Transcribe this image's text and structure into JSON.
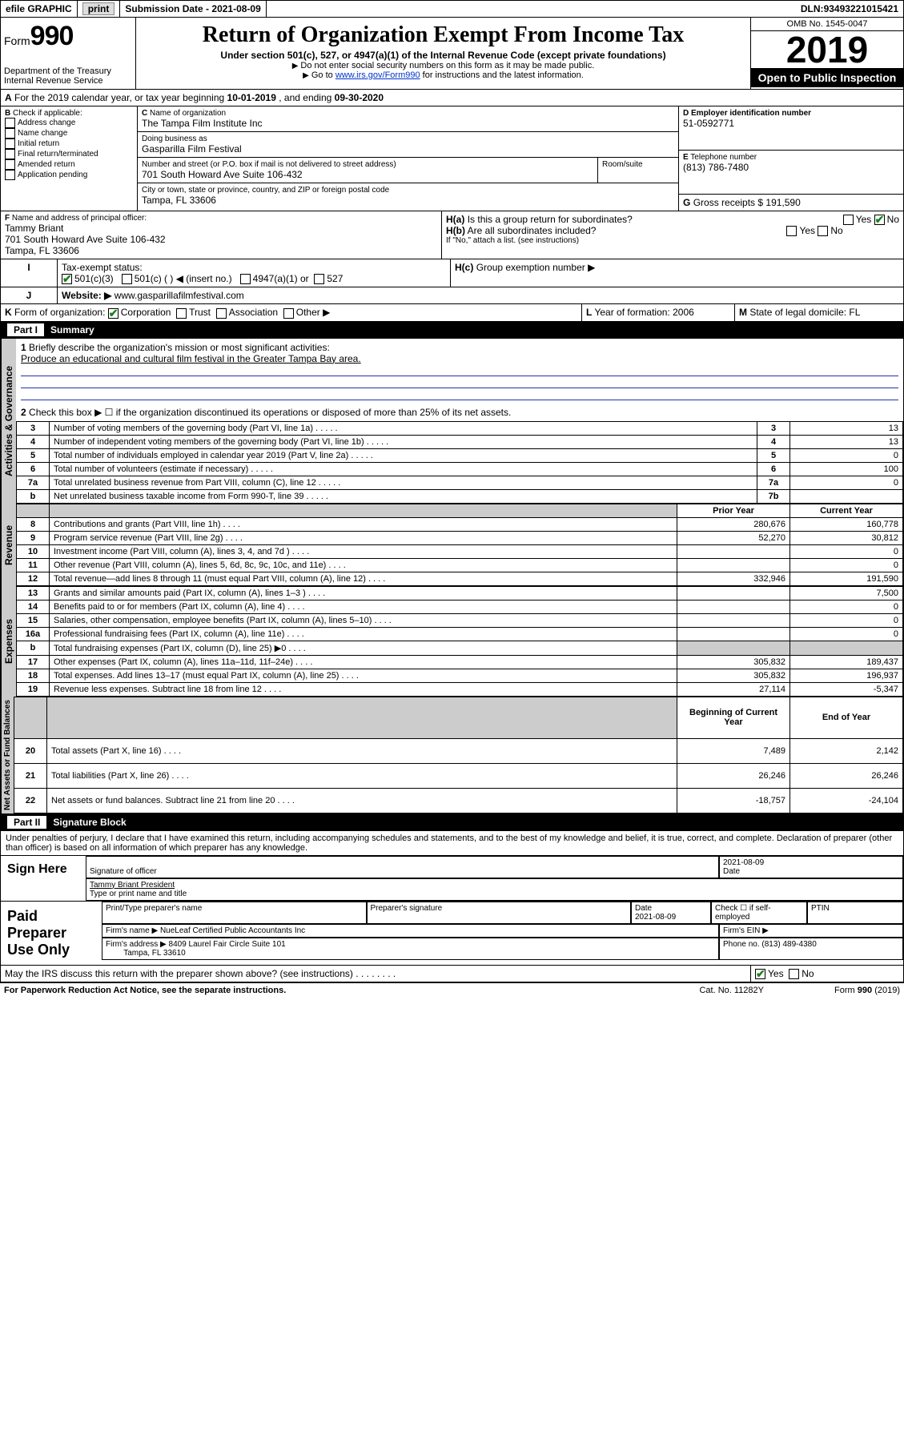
{
  "topbar": {
    "efile": "efile GRAPHIC",
    "print": "print",
    "sub_label": "Submission Date - ",
    "sub_date": "2021-08-09",
    "dln_label": "DLN: ",
    "dln": "93493221015421"
  },
  "header": {
    "form_prefix": "Form",
    "form_no": "990",
    "dept1": "Department of the Treasury",
    "dept2": "Internal Revenue Service",
    "title": "Return of Organization Exempt From Income Tax",
    "subtitle": "Under section 501(c), 527, or 4947(a)(1) of the Internal Revenue Code (except private foundations)",
    "note1": "Do not enter social security numbers on this form as it may be made public.",
    "note2_pre": "Go to ",
    "note2_link": "www.irs.gov/Form990",
    "note2_post": " for instructions and the latest information.",
    "omb": "OMB No. 1545-0047",
    "year": "2019",
    "open": "Open to Public Inspection"
  },
  "periodA": {
    "text_pre": "For the 2019 calendar year, or tax year beginning ",
    "begin": "10-01-2019",
    "mid": " , and ending ",
    "end": "09-30-2020"
  },
  "boxB": {
    "label": "Check if applicable:",
    "opts": [
      "Address change",
      "Name change",
      "Initial return",
      "Final return/terminated",
      "Amended return",
      "Application pending"
    ]
  },
  "boxC": {
    "name_label": "Name of organization",
    "name": "The Tampa Film Institute Inc",
    "dba_label": "Doing business as",
    "dba": "Gasparilla Film Festival",
    "street_label": "Number and street (or P.O. box if mail is not delivered to street address)",
    "room_label": "Room/suite",
    "street": "701 South Howard Ave Suite 106-432",
    "city_label": "City or town, state or province, country, and ZIP or foreign postal code",
    "city": "Tampa, FL  33606"
  },
  "boxD": {
    "label": "Employer identification number",
    "val": "51-0592771"
  },
  "boxE": {
    "label": "Telephone number",
    "val": "(813) 786-7480"
  },
  "boxG": {
    "label": "Gross receipts $ ",
    "val": "191,590"
  },
  "boxF": {
    "label": "Name and address of principal officer:",
    "name": "Tammy Briant",
    "street": "701 South Howard Ave Suite 106-432",
    "city": "Tampa, FL  33606"
  },
  "boxH": {
    "a": "Is this a group return for subordinates?",
    "b": "Are all subordinates included?",
    "note": "If \"No,\" attach a list. (see instructions)",
    "c": "Group exemption number ▶",
    "yes": "Yes",
    "no": "No"
  },
  "boxI": {
    "label": "Tax-exempt status:",
    "opts": [
      "501(c)(3)",
      "501(c) (   ) ◀ (insert no.)",
      "4947(a)(1) or",
      "527"
    ]
  },
  "boxJ": {
    "label": "Website: ▶",
    "val": "www.gasparillafilmfestival.com"
  },
  "boxK": {
    "label": "Form of organization:",
    "opts": [
      "Corporation",
      "Trust",
      "Association",
      "Other ▶"
    ]
  },
  "boxL": {
    "label": "Year of formation: ",
    "val": "2006"
  },
  "boxM": {
    "label": "State of legal domicile: ",
    "val": "FL"
  },
  "part1": {
    "no": "Part I",
    "title": "Summary"
  },
  "summary": {
    "l1_label": "Briefly describe the organization's mission or most significant activities:",
    "l1_text": "Produce an educational and cultural film festival in the Greater Tampa Bay area.",
    "l2": "Check this box ▶ ☐  if the organization discontinued its operations or disposed of more than 25% of its net assets.",
    "rows1": [
      {
        "n": "3",
        "t": "Number of voting members of the governing body (Part VI, line 1a)",
        "r": "3",
        "v": "13"
      },
      {
        "n": "4",
        "t": "Number of independent voting members of the governing body (Part VI, line 1b)",
        "r": "4",
        "v": "13"
      },
      {
        "n": "5",
        "t": "Total number of individuals employed in calendar year 2019 (Part V, line 2a)",
        "r": "5",
        "v": "0"
      },
      {
        "n": "6",
        "t": "Total number of volunteers (estimate if necessary)",
        "r": "6",
        "v": "100"
      },
      {
        "n": "7a",
        "t": "Total unrelated business revenue from Part VIII, column (C), line 12",
        "r": "7a",
        "v": "0"
      },
      {
        "n": "b",
        "t": "Net unrelated business taxable income from Form 990-T, line 39",
        "r": "7b",
        "v": ""
      }
    ],
    "hdr_prior": "Prior Year",
    "hdr_curr": "Current Year",
    "revenue": [
      {
        "n": "8",
        "t": "Contributions and grants (Part VIII, line 1h)",
        "p": "280,676",
        "c": "160,778"
      },
      {
        "n": "9",
        "t": "Program service revenue (Part VIII, line 2g)",
        "p": "52,270",
        "c": "30,812"
      },
      {
        "n": "10",
        "t": "Investment income (Part VIII, column (A), lines 3, 4, and 7d )",
        "p": "",
        "c": "0"
      },
      {
        "n": "11",
        "t": "Other revenue (Part VIII, column (A), lines 5, 6d, 8c, 9c, 10c, and 11e)",
        "p": "",
        "c": "0"
      },
      {
        "n": "12",
        "t": "Total revenue—add lines 8 through 11 (must equal Part VIII, column (A), line 12)",
        "p": "332,946",
        "c": "191,590"
      }
    ],
    "expenses": [
      {
        "n": "13",
        "t": "Grants and similar amounts paid (Part IX, column (A), lines 1–3 )",
        "p": "",
        "c": "7,500"
      },
      {
        "n": "14",
        "t": "Benefits paid to or for members (Part IX, column (A), line 4)",
        "p": "",
        "c": "0"
      },
      {
        "n": "15",
        "t": "Salaries, other compensation, employee benefits (Part IX, column (A), lines 5–10)",
        "p": "",
        "c": "0"
      },
      {
        "n": "16a",
        "t": "Professional fundraising fees (Part IX, column (A), line 11e)",
        "p": "",
        "c": "0"
      },
      {
        "n": "b",
        "t": "Total fundraising expenses (Part IX, column (D), line 25) ▶0",
        "p": "shade",
        "c": "shade"
      },
      {
        "n": "17",
        "t": "Other expenses (Part IX, column (A), lines 11a–11d, 11f–24e)",
        "p": "305,832",
        "c": "189,437"
      },
      {
        "n": "18",
        "t": "Total expenses. Add lines 13–17 (must equal Part IX, column (A), line 25)",
        "p": "305,832",
        "c": "196,937"
      },
      {
        "n": "19",
        "t": "Revenue less expenses. Subtract line 18 from line 12",
        "p": "27,114",
        "c": "-5,347"
      }
    ],
    "hdr_begin": "Beginning of Current Year",
    "hdr_end": "End of Year",
    "netassets": [
      {
        "n": "20",
        "t": "Total assets (Part X, line 16)",
        "p": "7,489",
        "c": "2,142"
      },
      {
        "n": "21",
        "t": "Total liabilities (Part X, line 26)",
        "p": "26,246",
        "c": "26,246"
      },
      {
        "n": "22",
        "t": "Net assets or fund balances. Subtract line 21 from line 20",
        "p": "-18,757",
        "c": "-24,104"
      }
    ],
    "side1": "Activities & Governance",
    "side2": "Revenue",
    "side3": "Expenses",
    "side4": "Net Assets or Fund Balances"
  },
  "part2": {
    "no": "Part II",
    "title": "Signature Block"
  },
  "sig": {
    "perjury": "Under penalties of perjury, I declare that I have examined this return, including accompanying schedules and statements, and to the best of my knowledge and belief, it is true, correct, and complete. Declaration of preparer (other than officer) is based on all information of which preparer has any knowledge.",
    "sign_here": "Sign Here",
    "sig_officer": "Signature of officer",
    "date_lbl": "Date",
    "date": "2021-08-09",
    "name_title": "Tammy Briant  President",
    "type_name": "Type or print name and title",
    "paid": "Paid Preparer Use Only",
    "p_name_lbl": "Print/Type preparer's name",
    "p_sig_lbl": "Preparer's signature",
    "p_date_lbl": "Date",
    "p_date": "2021-08-09",
    "p_check": "Check ☐ if self-employed",
    "ptin": "PTIN",
    "firm_name_lbl": "Firm's name    ▶",
    "firm_name": "NueLeaf Certified Public Accountants Inc",
    "firm_ein": "Firm's EIN ▶",
    "firm_addr_lbl": "Firm's address ▶",
    "firm_addr1": "8409 Laurel Fair Circle Suite 101",
    "firm_addr2": "Tampa, FL  33610",
    "firm_phone_lbl": "Phone no. ",
    "firm_phone": "(813) 489-4380",
    "discuss": "May the IRS discuss this return with the preparer shown above? (see instructions)",
    "yes": "Yes",
    "no": "No"
  },
  "footer": {
    "pra": "For Paperwork Reduction Act Notice, see the separate instructions.",
    "cat": "Cat. No. 11282Y",
    "form": "Form 990 (2019)"
  }
}
